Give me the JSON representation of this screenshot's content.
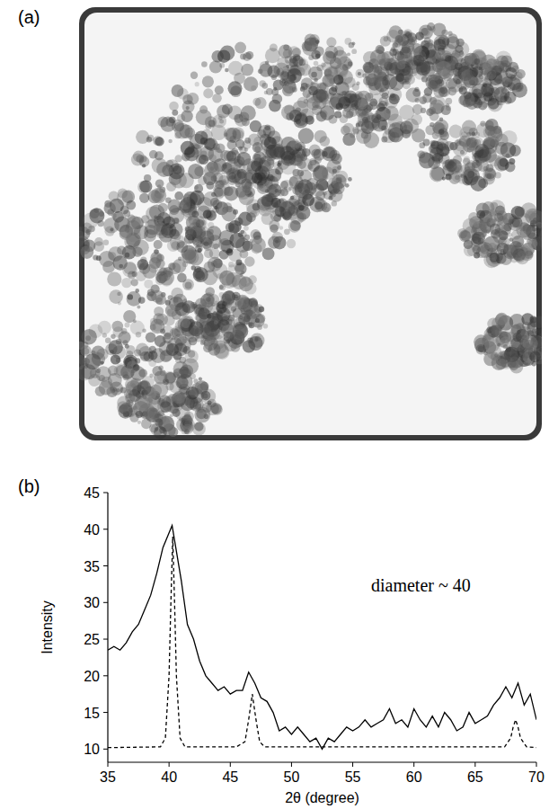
{
  "chart_data": [
    {
      "type": "image",
      "label": "(a)"
    },
    {
      "type": "line",
      "label": "(b)",
      "x_label": "2θ (degree)",
      "y_label": "Intensity",
      "annotation": "diameter ~ 40",
      "xlim": [
        35,
        70
      ],
      "xticks": [
        35,
        40,
        45,
        50,
        55,
        60,
        65,
        70
      ],
      "ylim": [
        8.2,
        45
      ],
      "yticks": [
        10,
        15,
        20,
        25,
        30,
        35,
        40,
        45
      ],
      "grid": false,
      "series": [
        {
          "color": "#000000",
          "line_style": "solid",
          "x": [
            35,
            35.5,
            36,
            36.5,
            37,
            37.5,
            38,
            38.5,
            39,
            39.5,
            40,
            40.25,
            40.5,
            41,
            41.5,
            42,
            42.5,
            43,
            43.5,
            44,
            44.5,
            45,
            45.5,
            46,
            46.5,
            47,
            47.5,
            48,
            48.5,
            49,
            49.5,
            50,
            50.5,
            51,
            51.5,
            52,
            52.5,
            53,
            53.5,
            54,
            54.5,
            55,
            55.5,
            56,
            56.5,
            57,
            57.5,
            58,
            58.5,
            59,
            59.5,
            60,
            60.5,
            61,
            61.5,
            62,
            62.5,
            63,
            63.5,
            64,
            64.5,
            65,
            65.5,
            66,
            66.5,
            67,
            67.5,
            68,
            68.5,
            69,
            69.5,
            70
          ],
          "values": [
            23.5,
            24,
            23.5,
            24.5,
            26,
            27,
            29,
            31,
            34,
            37.5,
            39.5,
            40.5,
            38,
            33,
            27,
            25,
            22,
            20,
            19,
            18,
            18.5,
            17.5,
            18,
            18,
            20.5,
            19,
            17,
            16.5,
            15,
            12.5,
            13,
            12,
            13,
            12,
            11,
            11.5,
            10,
            11.5,
            11,
            12,
            13,
            12.5,
            13,
            14,
            13,
            13.5,
            14,
            15.5,
            13.5,
            14,
            13,
            15.5,
            14,
            13,
            14.5,
            13,
            15,
            14,
            12.5,
            13,
            15,
            13.5,
            14,
            14.5,
            16,
            17,
            18.5,
            17,
            19,
            16,
            17.5,
            14
          ]
        },
        {
          "color": "#000000",
          "line_style": "dashed",
          "x": [
            35,
            39.3,
            39.7,
            40,
            40.15,
            40.3,
            40.45,
            40.6,
            40.9,
            41.3,
            45.5,
            46.2,
            46.5,
            46.8,
            47.1,
            47.4,
            47.8,
            67.4,
            67.9,
            68.1,
            68.3,
            68.5,
            68.7,
            69.2,
            70
          ],
          "values": [
            10.2,
            10.3,
            11.5,
            20,
            30,
            39,
            30,
            20,
            11.5,
            10.3,
            10.3,
            11,
            14,
            17.5,
            14,
            11,
            10.3,
            10.3,
            11.5,
            13,
            14,
            13,
            11.5,
            10.3,
            10.2
          ]
        }
      ]
    }
  ]
}
